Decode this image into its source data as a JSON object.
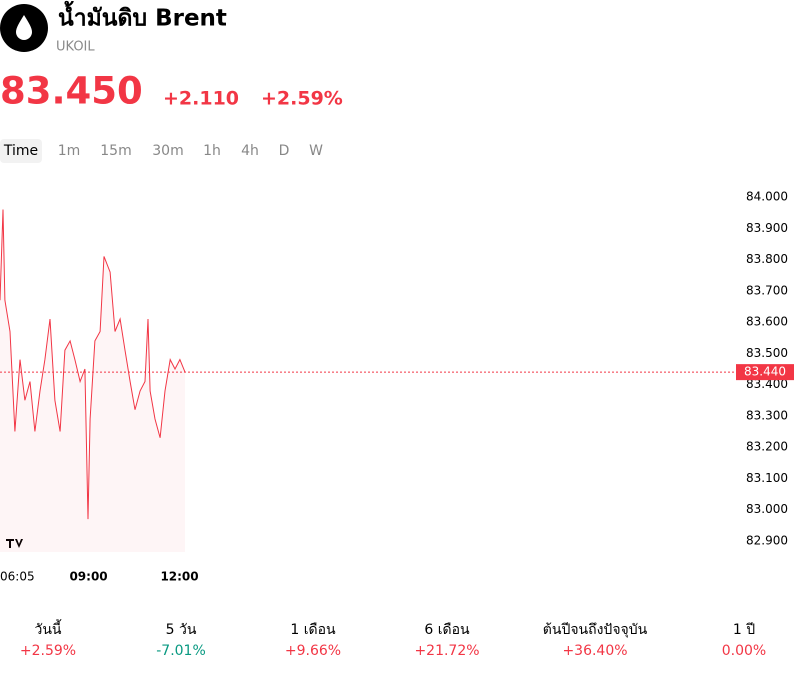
{
  "header": {
    "title": "น้ำมันดิบ Brent",
    "symbol": "UKOIL"
  },
  "quote": {
    "price": "83.450",
    "change": "+2.110",
    "change_percent": "+2.59%"
  },
  "timeframes": [
    "Time",
    "1m",
    "15m",
    "30m",
    "1h",
    "4h",
    "D",
    "W"
  ],
  "chart": {
    "type": "line",
    "color": "#f23645",
    "x": [
      6.08,
      6.18,
      6.24,
      6.41,
      6.57,
      6.74,
      6.9,
      7.07,
      7.23,
      7.4,
      7.56,
      7.73,
      7.89,
      8.06,
      8.22,
      8.39,
      8.55,
      8.72,
      8.88,
      8.98,
      9.05,
      9.21,
      9.38,
      9.51,
      9.71,
      9.87,
      10.04,
      10.2,
      10.37,
      10.53,
      10.7,
      10.86,
      10.96,
      11.03,
      11.19,
      11.36,
      11.52,
      11.69,
      11.85,
      12.01,
      12.18
    ],
    "values": [
      83.67,
      83.96,
      83.67,
      83.57,
      83.25,
      83.48,
      83.35,
      83.41,
      83.25,
      83.38,
      83.48,
      83.61,
      83.35,
      83.25,
      83.51,
      83.54,
      83.48,
      83.41,
      83.45,
      82.97,
      83.29,
      83.54,
      83.57,
      83.81,
      83.76,
      83.57,
      83.61,
      83.51,
      83.41,
      83.32,
      83.38,
      83.41,
      83.61,
      83.38,
      83.29,
      83.23,
      83.38,
      83.48,
      83.45,
      83.48,
      83.44
    ],
    "xlim": [
      6.08,
      30.3
    ],
    "ylim": [
      82.9,
      84.0
    ],
    "xticks": [
      {
        "value": 6.08,
        "label": "06:05"
      },
      {
        "value": 9,
        "label": "09:00"
      },
      {
        "value": 12,
        "label": "12:00"
      }
    ],
    "yticks": [
      {
        "value": 82.9,
        "label": "82.900"
      },
      {
        "value": 83.0,
        "label": "83.000"
      },
      {
        "value": 83.1,
        "label": "83.100"
      },
      {
        "value": 83.2,
        "label": "83.200"
      },
      {
        "value": 83.3,
        "label": "83.300"
      },
      {
        "value": 83.4,
        "label": "83.400"
      },
      {
        "value": 83.5,
        "label": "83.500"
      },
      {
        "value": 83.6,
        "label": "83.600"
      },
      {
        "value": 83.7,
        "label": "83.700"
      },
      {
        "value": 83.8,
        "label": "83.800"
      },
      {
        "value": 83.9,
        "label": "83.900"
      },
      {
        "value": 84.0,
        "label": "84.000"
      }
    ],
    "last": {
      "value": 83.44,
      "label": "83.440"
    }
  },
  "performance": [
    {
      "label": "วันนี้",
      "value": "+2.59%"
    },
    {
      "label": "5 วัน",
      "value": "-7.01%"
    },
    {
      "label": "1 เดือน",
      "value": "+9.66%"
    },
    {
      "label": "6 เดือน",
      "value": "+21.72%"
    },
    {
      "label": "ต้นปีจนถึงปัจจุบัน",
      "value": "+36.40%"
    },
    {
      "label": "1 ปี",
      "value": "0.00%"
    }
  ]
}
